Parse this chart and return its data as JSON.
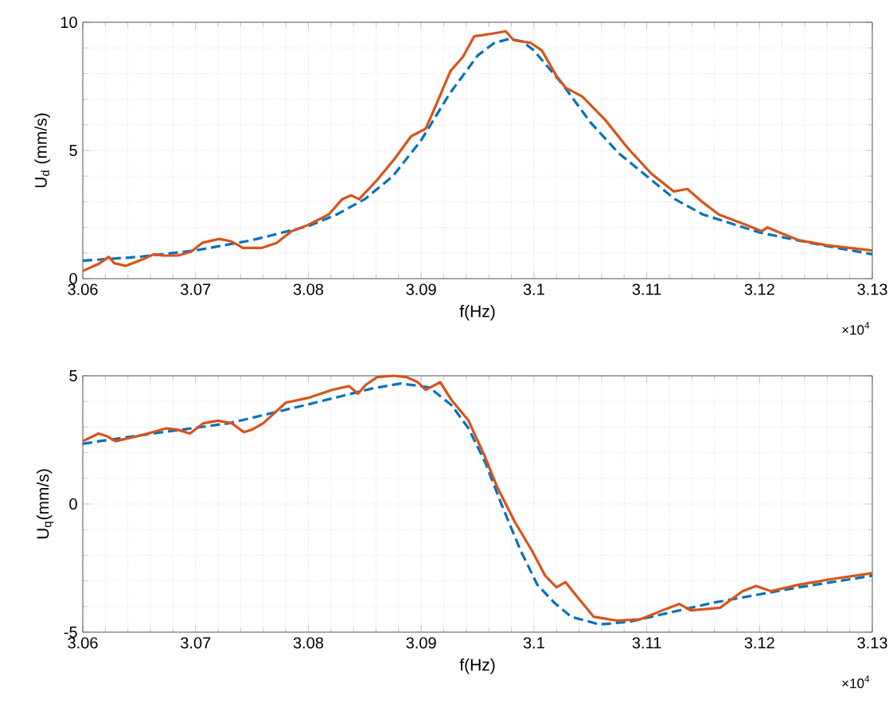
{
  "chart_data": [
    {
      "type": "line",
      "xlabel": "f(Hz)",
      "ylabel": "U$_{d}$ (mm/s)",
      "annotations": [
        "×10$^{4}$"
      ],
      "grid": true,
      "xlim": [
        3.06,
        3.13
      ],
      "ylim": [
        0,
        10
      ],
      "xticks": [
        3.06,
        3.07,
        3.08,
        3.09,
        3.1,
        3.11,
        3.12,
        3.13
      ],
      "yticks": [
        0,
        5,
        10
      ],
      "series": [
        {
          "color": "#0072bd",
          "line_style": "dashed",
          "x": [
            3.06,
            3.065,
            3.07,
            3.075,
            3.08,
            3.0825,
            3.085,
            3.0875,
            3.09,
            3.0925,
            3.095,
            3.0965,
            3.0978,
            3.099,
            3.1,
            3.1025,
            3.105,
            3.1075,
            3.11,
            3.1125,
            3.115,
            3.12,
            3.125,
            3.13
          ],
          "values": [
            0.7,
            0.85,
            1.1,
            1.5,
            2.05,
            2.5,
            3.1,
            4.0,
            5.4,
            7.2,
            8.7,
            9.2,
            9.35,
            9.25,
            8.9,
            7.6,
            6.1,
            4.9,
            4.0,
            3.1,
            2.5,
            1.8,
            1.35,
            0.95
          ]
        },
        {
          "color": "#d95319",
          "line_style": "solid",
          "x": [
            3.06,
            3.0615,
            3.0623,
            3.0628,
            3.0638,
            3.0653,
            3.0663,
            3.0671,
            3.0684,
            3.0696,
            3.0706,
            3.0721,
            3.0732,
            3.0742,
            3.0759,
            3.0772,
            3.0785,
            3.08,
            3.0818,
            3.083,
            3.0838,
            3.0845,
            3.0861,
            3.0876,
            3.0891,
            3.0904,
            3.0911,
            3.0926,
            3.0937,
            3.0947,
            3.0962,
            3.0975,
            3.0982,
            3.0997,
            3.1007,
            3.102,
            3.1028,
            3.1043,
            3.1063,
            3.1083,
            3.1104,
            3.1124,
            3.1136,
            3.1149,
            3.1164,
            3.1185,
            3.1202,
            3.1207,
            3.1215,
            3.1235,
            3.126,
            3.13
          ],
          "values": [
            0.3,
            0.6,
            0.85,
            0.6,
            0.5,
            0.75,
            0.95,
            0.9,
            0.9,
            1.05,
            1.4,
            1.55,
            1.45,
            1.2,
            1.2,
            1.4,
            1.85,
            2.1,
            2.5,
            3.1,
            3.25,
            3.1,
            3.85,
            4.65,
            5.55,
            5.85,
            6.55,
            8.1,
            8.65,
            9.45,
            9.55,
            9.65,
            9.3,
            9.2,
            8.9,
            7.9,
            7.45,
            7.1,
            6.2,
            5.1,
            4.1,
            3.4,
            3.5,
            3.0,
            2.5,
            2.15,
            1.85,
            2.0,
            1.85,
            1.5,
            1.3,
            1.1
          ]
        }
      ]
    },
    {
      "type": "line",
      "xlabel": "f(Hz)",
      "ylabel": "U$_{q}$(mm/s)",
      "annotations": [
        "×10$^{4}$"
      ],
      "grid": true,
      "xlim": [
        3.06,
        3.13
      ],
      "ylim": [
        -5,
        5
      ],
      "xticks": [
        3.06,
        3.07,
        3.08,
        3.09,
        3.1,
        3.11,
        3.12,
        3.13
      ],
      "yticks": [
        -5,
        0,
        5
      ],
      "series": [
        {
          "color": "#0072bd",
          "line_style": "dashed",
          "x": [
            3.06,
            3.0654,
            3.073,
            3.0806,
            3.0856,
            3.0882,
            3.0907,
            3.0927,
            3.0942,
            3.0957,
            3.0972,
            3.0988,
            3.1003,
            3.1018,
            3.1033,
            3.1058,
            3.1084,
            3.1109,
            3.1159,
            3.1235,
            3.13
          ],
          "values": [
            2.35,
            2.7,
            3.15,
            3.95,
            4.5,
            4.7,
            4.55,
            3.85,
            2.95,
            1.6,
            -0.1,
            -1.8,
            -3.15,
            -3.85,
            -4.4,
            -4.7,
            -4.6,
            -4.35,
            -3.85,
            -3.25,
            -2.8
          ]
        },
        {
          "color": "#d95319",
          "line_style": "solid",
          "x": [
            3.06,
            3.0614,
            3.0621,
            3.0629,
            3.0654,
            3.0674,
            3.0684,
            3.0695,
            3.0707,
            3.072,
            3.0732,
            3.0743,
            3.075,
            3.076,
            3.078,
            3.0801,
            3.0821,
            3.0836,
            3.0844,
            3.0851,
            3.0861,
            3.0876,
            3.0887,
            3.0897,
            3.0904,
            3.0917,
            3.0927,
            3.0942,
            3.0957,
            3.0967,
            3.0983,
            3.0998,
            3.101,
            3.102,
            3.1028,
            3.1038,
            3.1053,
            3.1074,
            3.1094,
            3.1114,
            3.1129,
            3.1139,
            3.1165,
            3.1185,
            3.1197,
            3.121,
            3.1235,
            3.1261,
            3.13
          ],
          "values": [
            2.45,
            2.75,
            2.65,
            2.45,
            2.7,
            2.95,
            2.9,
            2.75,
            3.15,
            3.25,
            3.15,
            2.8,
            2.9,
            3.15,
            3.95,
            4.15,
            4.45,
            4.6,
            4.3,
            4.65,
            4.95,
            5.0,
            4.95,
            4.75,
            4.45,
            4.75,
            4.05,
            3.25,
            1.8,
            0.7,
            -0.7,
            -1.8,
            -2.8,
            -3.25,
            -3.05,
            -3.6,
            -4.4,
            -4.55,
            -4.5,
            -4.15,
            -3.9,
            -4.15,
            -4.05,
            -3.4,
            -3.2,
            -3.4,
            -3.15,
            -2.95,
            -2.7
          ]
        }
      ]
    }
  ]
}
